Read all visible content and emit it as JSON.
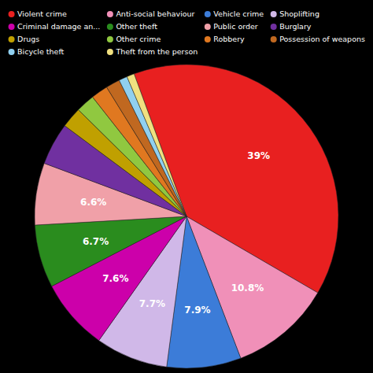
{
  "chart_data": {
    "type": "pie",
    "categories": [
      "Violent crime",
      "Anti-social behaviour",
      "Vehicle crime",
      "Shoplifting",
      "Criminal damage an...",
      "Other theft",
      "Public order",
      "Burglary",
      "Drugs",
      "Other crime",
      "Robbery",
      "Possession of weapons",
      "Bicycle theft",
      "Theft from the person"
    ],
    "values": [
      39.0,
      10.8,
      7.9,
      7.7,
      7.6,
      6.7,
      6.6,
      4.5,
      2.2,
      2.0,
      1.8,
      1.5,
      0.9,
      0.8
    ],
    "value_labels": [
      "39%",
      "10.8%",
      "7.9%",
      "7.7%",
      "7.6%",
      "6.7%",
      "6.6%",
      null,
      null,
      null,
      null,
      null,
      null,
      null
    ],
    "colors": [
      "#e82020",
      "#f090b8",
      "#3c7cd8",
      "#d0b8e8",
      "#cc00aa",
      "#2a8c1e",
      "#f0a0a8",
      "#7030a0",
      "#c0a000",
      "#90c840",
      "#e07820",
      "#c06820",
      "#90d0f0",
      "#f0e080"
    ],
    "legend": "top"
  }
}
